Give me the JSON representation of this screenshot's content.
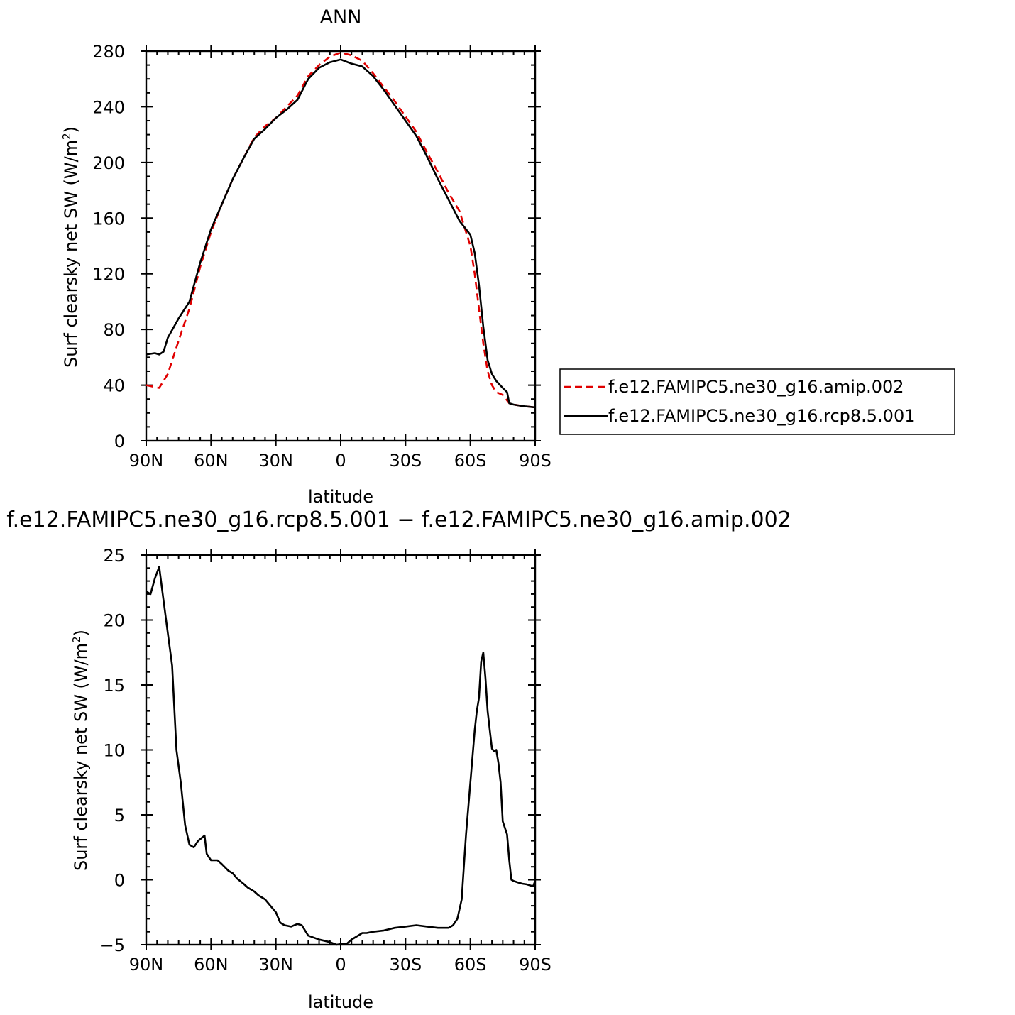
{
  "figure": {
    "top_title": "ANN",
    "bottom_title": "f.e12.FAMIPC5.ne30_g16.rcp8.5.001 − f.e12.FAMIPC5.ne30_g16.amip.002"
  },
  "chart_data": [
    {
      "type": "line",
      "title": "ANN",
      "xlabel": "latitude",
      "ylabel": "Surf clearsky net SW (W/m²)",
      "xlim": [
        90,
        -90
      ],
      "ylim": [
        0,
        280
      ],
      "x_ticks": [
        90,
        60,
        30,
        0,
        -30,
        -60,
        -90
      ],
      "x_tick_labels": [
        "90N",
        "60N",
        "30N",
        "0",
        "30S",
        "60S",
        "90S"
      ],
      "y_ticks": [
        0,
        40,
        80,
        120,
        160,
        200,
        240,
        280
      ],
      "y_tick_labels": [
        "0",
        "40",
        "80",
        "120",
        "160",
        "200",
        "240",
        "280"
      ],
      "legend_position": "right",
      "series": [
        {
          "name": "f.e12.FAMIPC5.ne30_g16.amip.002",
          "color": "#e00000",
          "dash": "dashed",
          "x": [
            90,
            84,
            80,
            75,
            70,
            65,
            60,
            55,
            50,
            45,
            40,
            35,
            30,
            25,
            20,
            15,
            10,
            5,
            0,
            -5,
            -10,
            -15,
            -20,
            -25,
            -30,
            -35,
            -40,
            -45,
            -50,
            -55,
            -60,
            -62,
            -64,
            -66,
            -68,
            -70,
            -72,
            -75,
            -78,
            -80,
            -84,
            -90
          ],
          "y": [
            40,
            38,
            48,
            72,
            95,
            125,
            150,
            170,
            188,
            203,
            218,
            226,
            232,
            240,
            248,
            262,
            270,
            276,
            279,
            277,
            273,
            264,
            254,
            244,
            233,
            222,
            207,
            193,
            178,
            165,
            140,
            120,
            95,
            70,
            50,
            40,
            35,
            33,
            27,
            26,
            25,
            24
          ]
        },
        {
          "name": "f.e12.FAMIPC5.ne30_g16.rcp8.5.001",
          "color": "#000000",
          "dash": "solid",
          "x": [
            90,
            86,
            84,
            82,
            80,
            75,
            70,
            65,
            60,
            55,
            50,
            45,
            40,
            35,
            30,
            25,
            20,
            15,
            10,
            5,
            0,
            -5,
            -10,
            -15,
            -20,
            -25,
            -30,
            -35,
            -40,
            -45,
            -50,
            -55,
            -60,
            -62,
            -64,
            -66,
            -68,
            -70,
            -72,
            -75,
            -77,
            -78,
            -80,
            -84,
            -90
          ],
          "y": [
            62,
            63,
            62,
            64,
            74,
            88,
            100,
            128,
            152,
            170,
            188,
            203,
            217,
            224,
            232,
            238,
            245,
            260,
            268,
            272,
            274,
            271,
            269,
            262,
            252,
            241,
            230,
            219,
            204,
            188,
            173,
            158,
            148,
            135,
            112,
            82,
            58,
            48,
            43,
            38,
            35,
            27,
            26,
            25,
            24
          ]
        }
      ]
    },
    {
      "type": "line",
      "title": "f.e12.FAMIPC5.ne30_g16.rcp8.5.001 − f.e12.FAMIPC5.ne30_g16.amip.002",
      "xlabel": "latitude",
      "ylabel": "Surf clearsky net SW (W/m²)",
      "xlim": [
        90,
        -90
      ],
      "ylim": [
        -5,
        25
      ],
      "x_ticks": [
        90,
        60,
        30,
        0,
        -30,
        -60,
        -90
      ],
      "x_tick_labels": [
        "90N",
        "60N",
        "30N",
        "0",
        "30S",
        "60S",
        "90S"
      ],
      "y_ticks": [
        -5,
        0,
        5,
        10,
        15,
        20,
        25
      ],
      "y_tick_labels": [
        "−5",
        "0",
        "5",
        "10",
        "15",
        "20",
        "25"
      ],
      "series": [
        {
          "color": "#000000",
          "x": [
            90,
            88,
            86,
            84,
            82,
            80,
            78,
            76,
            74,
            72,
            70,
            68,
            66,
            63,
            62,
            60,
            57,
            55,
            52,
            50,
            48,
            45,
            43,
            40,
            38,
            35,
            33,
            30,
            28,
            26,
            23,
            20,
            18,
            15,
            10,
            5,
            2,
            0,
            -3,
            -5,
            -8,
            -10,
            -12,
            -15,
            -20,
            -25,
            -30,
            -35,
            -40,
            -45,
            -50,
            -52,
            -54,
            -56,
            -57,
            -58,
            -60,
            -62,
            -63,
            -64,
            -65,
            -66,
            -67,
            -68,
            -69,
            -70,
            -71,
            -72,
            -73,
            -74,
            -75,
            -77,
            -78,
            -79,
            -80,
            -82,
            -84,
            -86,
            -88,
            -89,
            -90
          ],
          "y": [
            22.2,
            22.0,
            23.2,
            24.1,
            21.5,
            19.0,
            16.5,
            10.0,
            7.5,
            4.2,
            2.7,
            2.5,
            3.0,
            3.4,
            2.0,
            1.5,
            1.5,
            1.2,
            0.7,
            0.5,
            0.1,
            -0.3,
            -0.6,
            -0.9,
            -1.2,
            -1.5,
            -1.9,
            -2.5,
            -3.3,
            -3.5,
            -3.6,
            -3.4,
            -3.5,
            -4.3,
            -4.6,
            -4.8,
            -5.0,
            -4.95,
            -4.9,
            -4.6,
            -4.3,
            -4.1,
            -4.1,
            -4.0,
            -3.9,
            -3.7,
            -3.6,
            -3.5,
            -3.6,
            -3.7,
            -3.7,
            -3.5,
            -3.0,
            -1.5,
            1.0,
            3.5,
            7.5,
            11.5,
            13.0,
            14.0,
            16.8,
            17.5,
            15.5,
            13.0,
            11.5,
            10.1,
            9.9,
            10.0,
            9.0,
            7.5,
            4.5,
            3.5,
            1.5,
            0.0,
            -0.1,
            -0.2,
            -0.3,
            -0.35,
            -0.45,
            -0.5,
            -0.1
          ]
        }
      ]
    }
  ]
}
